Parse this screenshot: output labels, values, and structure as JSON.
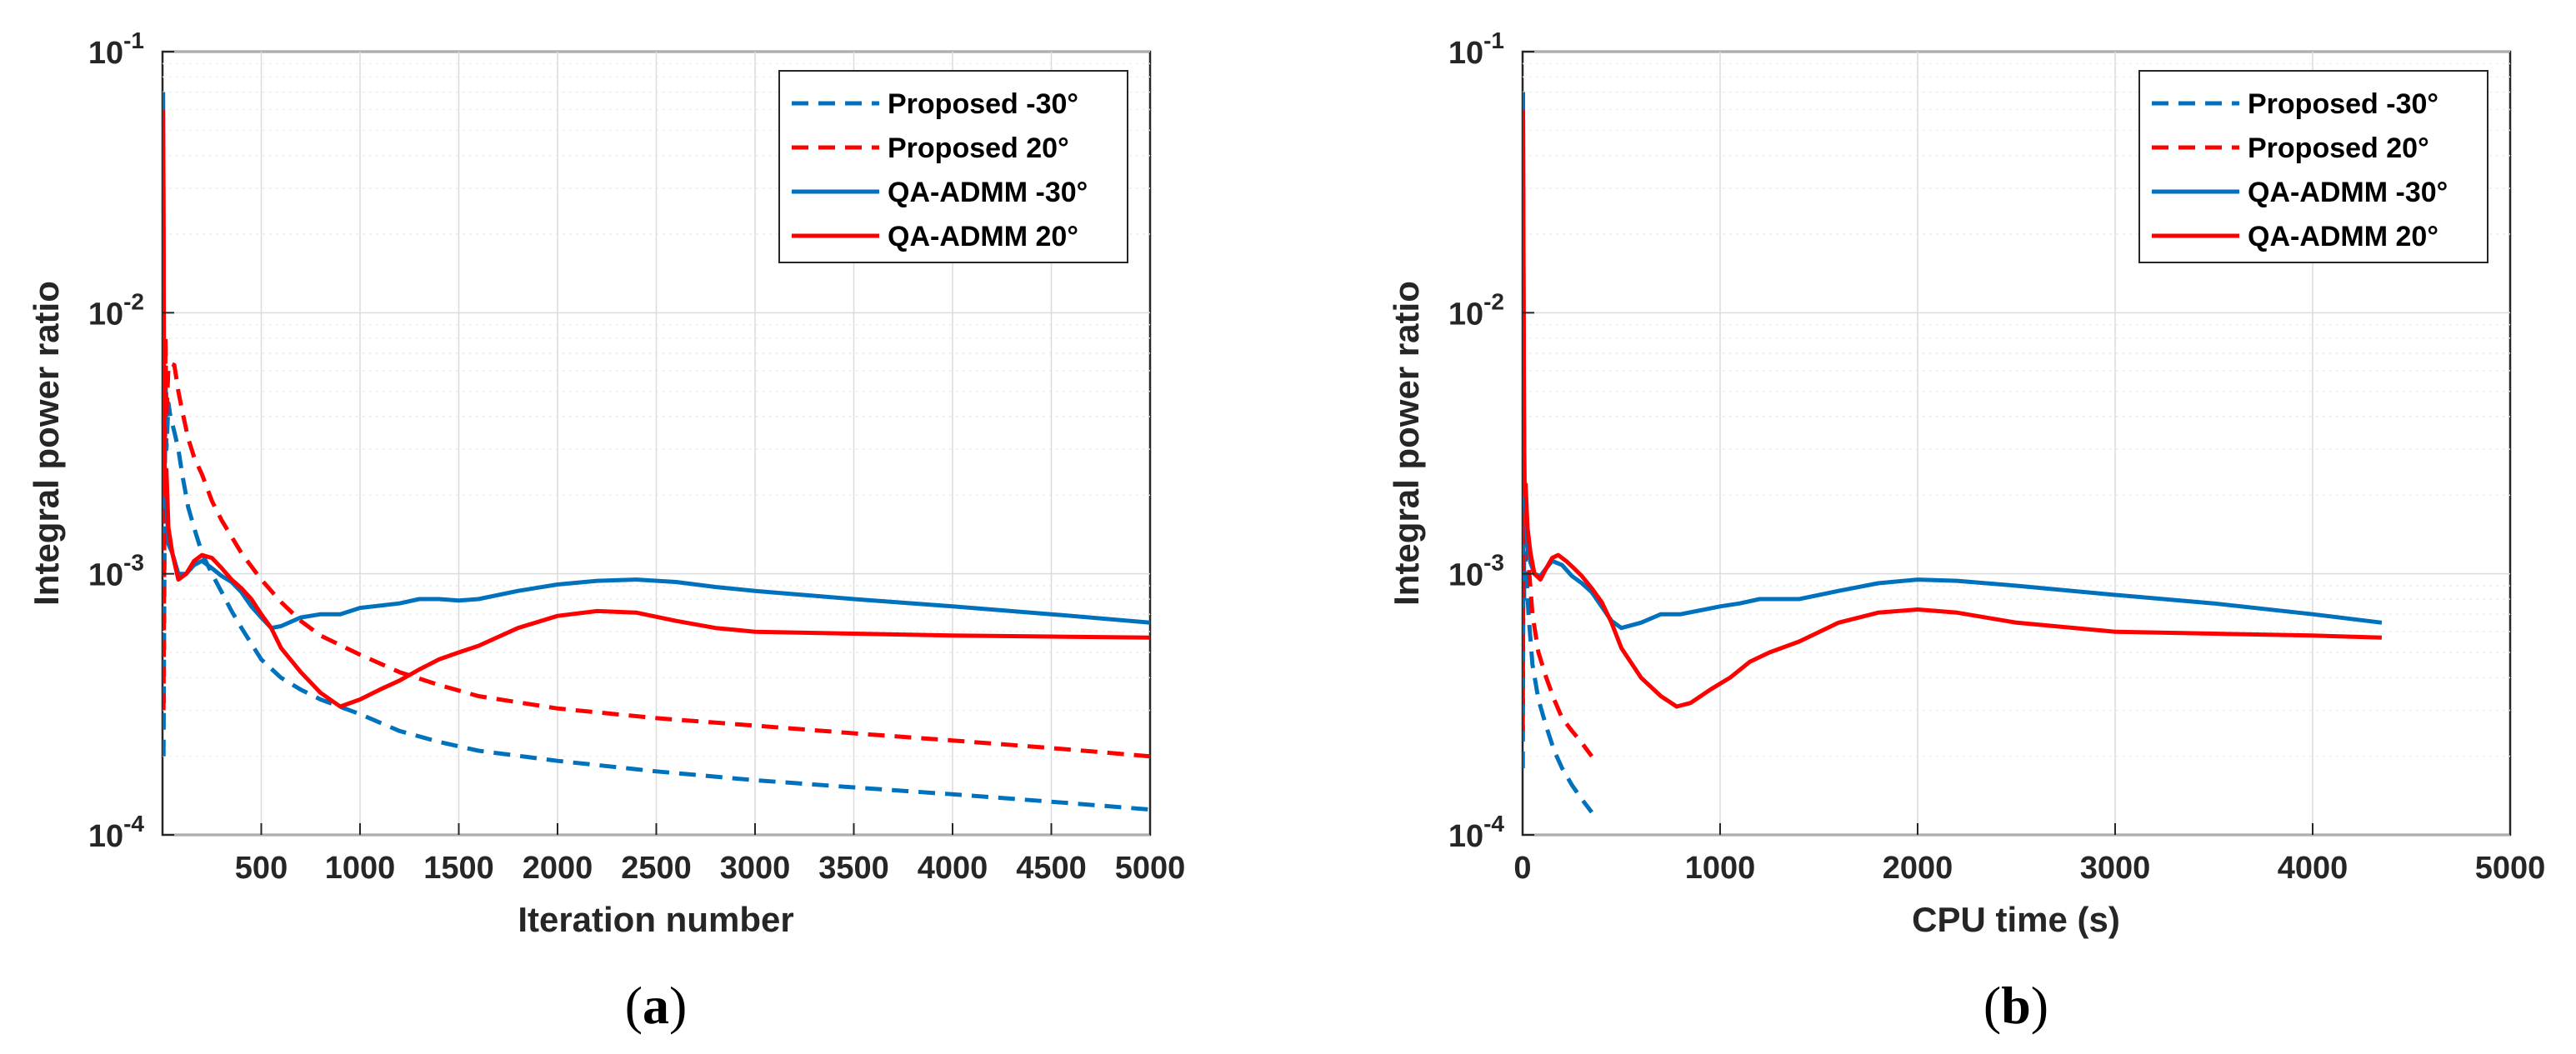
{
  "colors": {
    "blue": "#0072BD",
    "red": "#FF0000",
    "grid_major": "#dcdcdc",
    "grid_minor": "#ececec",
    "axis": "#262626"
  },
  "panels": [
    {
      "label_open": "(",
      "label_letter": "a",
      "label_close": ")"
    },
    {
      "label_open": "(",
      "label_letter": "b",
      "label_close": ")"
    }
  ],
  "chart_data": [
    {
      "type": "line",
      "title": "",
      "xlabel": "Iteration number",
      "ylabel": "Integral power ratio",
      "yscale": "log",
      "xlim": [
        0,
        5000
      ],
      "ylim": [
        0.0001,
        0.1
      ],
      "xticks": [
        500,
        1000,
        1500,
        2000,
        2500,
        3000,
        3500,
        4000,
        4500,
        5000
      ],
      "xtick_labels": [
        "500",
        "1000",
        "1500",
        "2000",
        "2500",
        "3000",
        "3500",
        "4000",
        "4500",
        "5000"
      ],
      "yticks": [
        0.0001,
        0.001,
        0.01,
        0.1
      ],
      "ytick_labels": [
        {
          "base": "10",
          "exp": "-4"
        },
        {
          "base": "10",
          "exp": "-3"
        },
        {
          "base": "10",
          "exp": "-2"
        },
        {
          "base": "10",
          "exp": "-1"
        }
      ],
      "grid": true,
      "legend_position": "top-right",
      "series": [
        {
          "name": "Proposed -30°",
          "color": "#0072BD",
          "style": "dashed",
          "x": [
            5,
            10,
            15,
            20,
            30,
            40,
            60,
            80,
            100,
            130,
            160,
            200,
            250,
            300,
            350,
            400,
            450,
            500,
            600,
            700,
            800,
            1000,
            1200,
            1400,
            1600,
            2000,
            2500,
            3000,
            3500,
            4000,
            4500,
            5000
          ],
          "y": [
            0.0002,
            0.0012,
            0.006,
            0.003,
            0.0045,
            0.004,
            0.0035,
            0.003,
            0.0024,
            0.0018,
            0.0015,
            0.0012,
            0.001,
            0.00085,
            0.00072,
            0.00062,
            0.00054,
            0.00047,
            0.0004,
            0.00036,
            0.00033,
            0.00029,
            0.00025,
            0.000227,
            0.00021,
            0.000192,
            0.000175,
            0.000162,
            0.000152,
            0.000143,
            0.000134,
            0.000125
          ]
        },
        {
          "name": "Proposed 20°",
          "color": "#FF0000",
          "style": "dashed",
          "x": [
            5,
            10,
            15,
            20,
            30,
            40,
            60,
            80,
            100,
            130,
            160,
            200,
            250,
            300,
            400,
            500,
            600,
            700,
            800,
            1000,
            1200,
            1400,
            1600,
            2000,
            2500,
            3000,
            3500,
            4000,
            4500,
            5000
          ],
          "y": [
            0.0003,
            0.002,
            0.008,
            0.004,
            0.0062,
            0.0064,
            0.0063,
            0.005,
            0.0042,
            0.0033,
            0.0028,
            0.0024,
            0.0019,
            0.0016,
            0.0012,
            0.00095,
            0.00078,
            0.00066,
            0.00058,
            0.00049,
            0.00042,
            0.000375,
            0.00034,
            0.000305,
            0.00028,
            0.000262,
            0.000245,
            0.00023,
            0.000215,
            0.0002
          ]
        },
        {
          "name": "QA-ADMM -30°",
          "color": "#0072BD",
          "style": "solid",
          "x": [
            3,
            5,
            8,
            12,
            20,
            30,
            50,
            80,
            120,
            160,
            200,
            250,
            300,
            350,
            400,
            450,
            500,
            550,
            600,
            700,
            800,
            900,
            1000,
            1200,
            1300,
            1400,
            1500,
            1600,
            1800,
            2000,
            2200,
            2400,
            2600,
            2800,
            3000,
            3500,
            4000,
            4500,
            5000
          ],
          "y": [
            0.07,
            0.02,
            0.003,
            0.0018,
            0.002,
            0.0013,
            0.0012,
            0.001,
            0.001,
            0.00108,
            0.00112,
            0.00105,
            0.00098,
            0.00093,
            0.00085,
            0.00075,
            0.00068,
            0.00062,
            0.00063,
            0.00068,
            0.0007,
            0.0007,
            0.00074,
            0.00077,
            0.0008,
            0.0008,
            0.00079,
            0.0008,
            0.00086,
            0.00091,
            0.00094,
            0.00095,
            0.00093,
            0.00089,
            0.00086,
            0.0008,
            0.00075,
            0.0007,
            0.00065
          ]
        },
        {
          "name": "QA-ADMM 20°",
          "color": "#FF0000",
          "style": "solid",
          "x": [
            3,
            5,
            8,
            12,
            20,
            30,
            50,
            80,
            120,
            160,
            200,
            250,
            300,
            350,
            400,
            450,
            500,
            550,
            600,
            700,
            800,
            900,
            1000,
            1100,
            1200,
            1300,
            1400,
            1500,
            1600,
            1800,
            2000,
            2200,
            2400,
            2600,
            2800,
            3000,
            3500,
            4000,
            4500,
            5000
          ],
          "y": [
            0.06,
            0.03,
            0.004,
            0.002,
            0.0025,
            0.0015,
            0.0012,
            0.00095,
            0.001,
            0.00112,
            0.00118,
            0.00115,
            0.00105,
            0.00095,
            0.00088,
            0.0008,
            0.0007,
            0.00062,
            0.00052,
            0.00042,
            0.00035,
            0.00031,
            0.00033,
            0.00036,
            0.00039,
            0.00043,
            0.00047,
            0.0005,
            0.00053,
            0.00062,
            0.00069,
            0.00072,
            0.00071,
            0.00066,
            0.00062,
            0.0006,
            0.00059,
            0.00058,
            0.000575,
            0.00057
          ]
        }
      ]
    },
    {
      "type": "line",
      "title": "",
      "xlabel": "CPU time (s)",
      "ylabel": "Integral power ratio",
      "yscale": "log",
      "xlim": [
        0,
        5000
      ],
      "ylim": [
        0.0001,
        0.1
      ],
      "xticks": [
        0,
        1000,
        2000,
        3000,
        4000,
        5000
      ],
      "xtick_labels": [
        "0",
        "1000",
        "2000",
        "3000",
        "4000",
        "5000"
      ],
      "yticks": [
        0.0001,
        0.001,
        0.01,
        0.1
      ],
      "ytick_labels": [
        {
          "base": "10",
          "exp": "-4"
        },
        {
          "base": "10",
          "exp": "-3"
        },
        {
          "base": "10",
          "exp": "-2"
        },
        {
          "base": "10",
          "exp": "-1"
        }
      ],
      "grid": true,
      "legend_position": "top-right",
      "series": [
        {
          "name": "Proposed -30°",
          "color": "#0072BD",
          "style": "dashed",
          "x": [
            1,
            3,
            5,
            8,
            12,
            20,
            30,
            50,
            80,
            120,
            160,
            200,
            250,
            300,
            350
          ],
          "y": [
            0.00018,
            0.0006,
            0.003,
            0.0008,
            0.0012,
            0.001,
            0.0007,
            0.00045,
            0.00033,
            0.00026,
            0.00021,
            0.00018,
            0.000155,
            0.000137,
            0.000122
          ]
        },
        {
          "name": "Proposed 20°",
          "color": "#FF0000",
          "style": "dashed",
          "x": [
            1,
            3,
            5,
            8,
            12,
            20,
            30,
            50,
            80,
            120,
            160,
            200,
            250,
            300,
            350
          ],
          "y": [
            0.00025,
            0.0009,
            0.004,
            0.0015,
            0.002,
            0.0016,
            0.0011,
            0.0007,
            0.0005,
            0.0004,
            0.00033,
            0.00028,
            0.00025,
            0.000225,
            0.0002
          ]
        },
        {
          "name": "QA-ADMM -30°",
          "color": "#0072BD",
          "style": "solid",
          "x": [
            2,
            4,
            7,
            10,
            15,
            25,
            40,
            60,
            90,
            120,
            150,
            200,
            250,
            300,
            350,
            400,
            450,
            500,
            600,
            700,
            800,
            1000,
            1100,
            1200,
            1400,
            1600,
            1800,
            2000,
            2200,
            2500,
            3000,
            3500,
            4000,
            4350
          ],
          "y": [
            0.07,
            0.02,
            0.004,
            0.002,
            0.0018,
            0.0013,
            0.0011,
            0.001,
            0.00098,
            0.00105,
            0.00112,
            0.00108,
            0.00098,
            0.00092,
            0.00085,
            0.00075,
            0.00066,
            0.00062,
            0.00065,
            0.0007,
            0.0007,
            0.00075,
            0.00077,
            0.0008,
            0.0008,
            0.00086,
            0.00092,
            0.00095,
            0.00094,
            0.0009,
            0.00083,
            0.00077,
            0.0007,
            0.00065
          ]
        },
        {
          "name": "QA-ADMM 20°",
          "color": "#FF0000",
          "style": "solid",
          "x": [
            2,
            4,
            7,
            10,
            15,
            25,
            40,
            60,
            90,
            120,
            150,
            180,
            220,
            260,
            300,
            350,
            400,
            450,
            500,
            600,
            700,
            780,
            850,
            950,
            1050,
            1150,
            1250,
            1400,
            1600,
            1800,
            2000,
            2200,
            2500,
            3000,
            3500,
            4000,
            4350
          ],
          "y": [
            0.06,
            0.03,
            0.004,
            0.002,
            0.0022,
            0.0015,
            0.0012,
            0.001,
            0.00095,
            0.00105,
            0.00115,
            0.00118,
            0.00112,
            0.00105,
            0.00098,
            0.00088,
            0.00078,
            0.00065,
            0.00052,
            0.0004,
            0.00034,
            0.00031,
            0.00032,
            0.00036,
            0.0004,
            0.00046,
            0.0005,
            0.00055,
            0.00065,
            0.00071,
            0.00073,
            0.00071,
            0.00065,
            0.0006,
            0.00059,
            0.00058,
            0.00057
          ]
        }
      ]
    }
  ]
}
